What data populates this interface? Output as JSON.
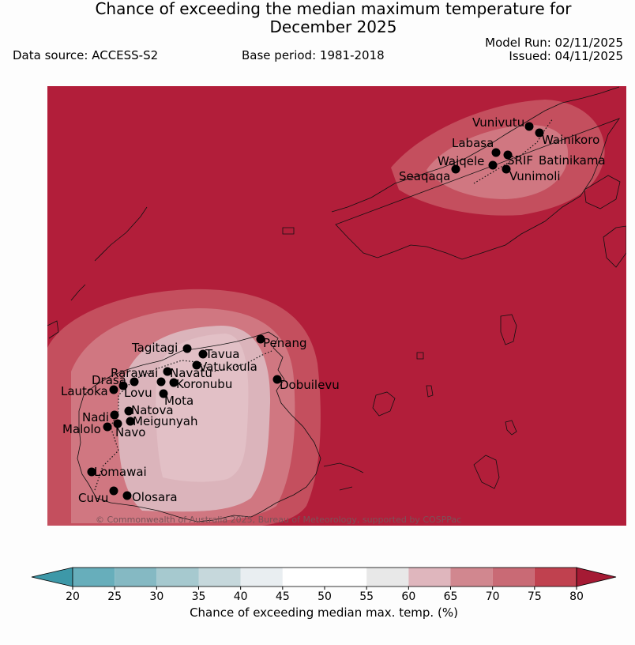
{
  "title": {
    "line1": "Chance of exceeding the median maximum temperature for",
    "line2": "December 2025"
  },
  "data_source": "Data source: ACCESS-S2",
  "base_period": "Base period: 1981-2018",
  "model_run": "Model Run: 02/11/2025",
  "issued": "Issued: 04/11/2025",
  "copyright": "© Commonwealth of Australia 2025, Bureau of Meteorology, supported by COSPPac",
  "colors": {
    "ocean_base": "#b21e3a",
    "band_70_75": "#c44f5e",
    "band_65_70": "#d07781",
    "band_60_65": "#dbb4bb",
    "coast": "#111111",
    "station": "#000000"
  },
  "stations": [
    {
      "name": "Vunivutu"
    },
    {
      "name": "Wainikoro"
    },
    {
      "name": "Labasa"
    },
    {
      "name": "SRIF"
    },
    {
      "name": "Batinikama"
    },
    {
      "name": "Waiqele"
    },
    {
      "name": "Seaqaqa"
    },
    {
      "name": "Vunimoli"
    },
    {
      "name": "Tagitagi"
    },
    {
      "name": "Tavua"
    },
    {
      "name": "Penang"
    },
    {
      "name": "Vatukoula"
    },
    {
      "name": "Rarawai"
    },
    {
      "name": "Navatu"
    },
    {
      "name": "Drasa"
    },
    {
      "name": "Koronubu"
    },
    {
      "name": "Dobuilevu"
    },
    {
      "name": "Lautoka"
    },
    {
      "name": "Lovu"
    },
    {
      "name": "Mota"
    },
    {
      "name": "Natova"
    },
    {
      "name": "Nadi"
    },
    {
      "name": "Meigunyah"
    },
    {
      "name": "Malolo"
    },
    {
      "name": "Navo"
    },
    {
      "name": "Lomawai"
    },
    {
      "name": "Cuvu"
    },
    {
      "name": "Olosara"
    }
  ],
  "colorbar": {
    "label": "Chance of exceeding median max. temp. (%)",
    "ticks": [
      "20",
      "25",
      "30",
      "35",
      "40",
      "45",
      "50",
      "55",
      "60",
      "65",
      "70",
      "75",
      "80"
    ],
    "colors": [
      "#67aebb",
      "#85b9c3",
      "#a6c9cf",
      "#c6d8dc",
      "#e9eef1",
      "#ffffff",
      "#ffffff",
      "#e8e8e8",
      "#dfb6bd",
      "#d1878f",
      "#c96a75",
      "#c0414f"
    ],
    "under_color": "#3d98a8",
    "over_color": "#a51a34"
  }
}
